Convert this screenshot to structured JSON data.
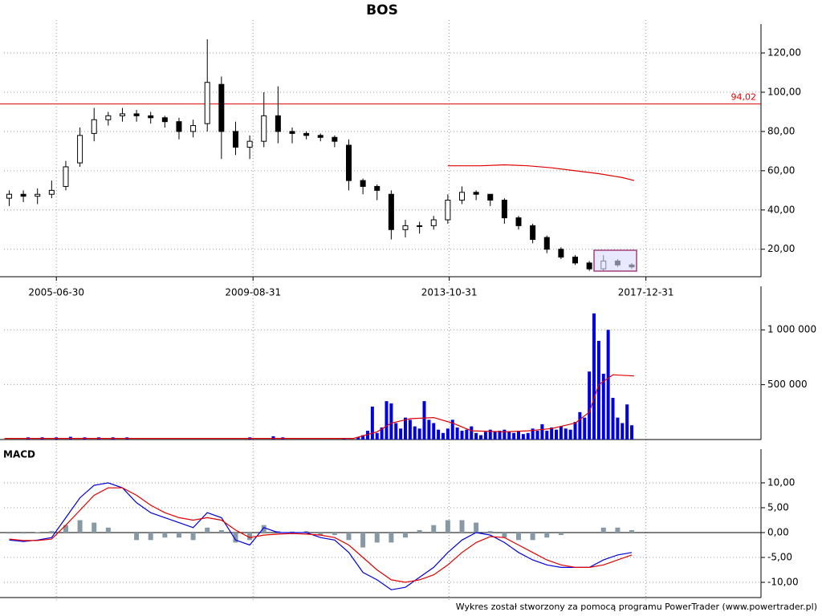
{
  "footer": "Wykres został stworzony za pomocą programu PowerTrader (www.powertrader.pl)",
  "chart_data": [
    {
      "type": "candlestick",
      "title": "BOS",
      "xlim": [
        2004.39,
        2020.44
      ],
      "xticks": [
        {
          "value": 2005.5,
          "label": "2005-06-30"
        },
        {
          "value": 2009.67,
          "label": "2009-08-31"
        },
        {
          "value": 2013.83,
          "label": "2013-10-31"
        },
        {
          "value": 2018.0,
          "label": "2017-12-31"
        }
      ],
      "ylim": [
        6,
        128.6
      ],
      "yticks": [
        {
          "value": 20,
          "label": "20,00"
        },
        {
          "value": 40,
          "label": "40,00"
        },
        {
          "value": 60,
          "label": "60,00"
        },
        {
          "value": 80,
          "label": "80,00"
        },
        {
          "value": 100,
          "label": "100,00"
        },
        {
          "value": 120,
          "label": "120,00"
        }
      ],
      "grid": true,
      "up_color": "#ffffff",
      "down_color": "#000000",
      "x": [
        2004.5,
        2004.8,
        2005.1,
        2005.4,
        2005.7,
        2006.0,
        2006.3,
        2006.6,
        2006.9,
        2007.2,
        2007.5,
        2007.8,
        2008.1,
        2008.4,
        2008.7,
        2009.0,
        2009.3,
        2009.6,
        2009.9,
        2010.2,
        2010.5,
        2010.8,
        2011.1,
        2011.4,
        2011.7,
        2012.0,
        2012.3,
        2012.6,
        2012.9,
        2013.2,
        2013.5,
        2013.8,
        2014.1,
        2014.4,
        2014.7,
        2015.0,
        2015.3,
        2015.6,
        2015.9,
        2016.2,
        2016.5,
        2016.8,
        2017.1,
        2017.4,
        2017.7
      ],
      "open": [
        46,
        48,
        47,
        48,
        52,
        64,
        79,
        86,
        88,
        89,
        88,
        87,
        85,
        80,
        84,
        104,
        80,
        72,
        75,
        88,
        80,
        79,
        78,
        77,
        73,
        55,
        52,
        48,
        30,
        32,
        32,
        35,
        45,
        49,
        48,
        45,
        36,
        32,
        26,
        20,
        16,
        13,
        10,
        14,
        12
      ],
      "high": [
        50,
        50,
        51,
        55,
        65,
        82,
        92,
        90,
        92,
        91,
        90,
        88,
        87,
        86,
        127,
        108,
        85,
        78,
        100,
        103,
        82,
        80,
        79,
        78,
        76,
        56,
        53,
        50,
        35,
        34,
        37,
        48,
        52,
        50,
        48,
        46,
        37,
        33,
        27,
        21,
        17,
        14,
        17,
        15,
        13
      ],
      "low": [
        42,
        44,
        43,
        46,
        50,
        62,
        75,
        83,
        85,
        85,
        84,
        82,
        76,
        77,
        80,
        66,
        68,
        66,
        72,
        74,
        74,
        76,
        75,
        72,
        50,
        48,
        45,
        25,
        26,
        28,
        30,
        33,
        43,
        45,
        42,
        33,
        30,
        23,
        18,
        15,
        12,
        9,
        9,
        11,
        10
      ],
      "close": [
        48,
        47,
        48,
        50,
        62,
        78,
        86,
        88,
        89,
        88,
        87,
        85,
        80,
        83,
        105,
        80,
        72,
        75,
        88,
        80,
        79,
        78,
        77,
        75,
        55,
        52,
        50,
        30,
        32,
        32,
        35,
        45,
        49,
        48,
        45,
        36,
        32,
        25,
        20,
        16,
        13,
        10,
        14,
        12,
        11
      ],
      "series": [
        {
          "color": "#e00000",
          "x": [
            2013.8,
            2014.5,
            2015.0,
            2015.5,
            2016.0,
            2016.5,
            2017.0,
            2017.5,
            2017.75
          ],
          "values": [
            62.5,
            62.5,
            63,
            62.5,
            61.5,
            60,
            58.5,
            56.5,
            55
          ]
        }
      ],
      "hlines": [
        {
          "value": 94.02,
          "label": "94,02",
          "color": "#e00000"
        }
      ]
    },
    {
      "type": "bar",
      "color": "#0000e0",
      "ylim": [
        0,
        1287000
      ],
      "yticks": [
        {
          "value": 500000,
          "label": "500 000"
        },
        {
          "value": 1000000,
          "label": "1 000 000"
        }
      ],
      "grid": true,
      "x": [
        2004.9,
        2005.2,
        2005.5,
        2005.8,
        2006.1,
        2006.4,
        2006.7,
        2007.0,
        2009.6,
        2010.1,
        2010.3,
        2011.6,
        2011.9,
        2012.0,
        2012.1,
        2012.2,
        2012.3,
        2012.4,
        2012.5,
        2012.6,
        2012.7,
        2012.8,
        2012.9,
        2013.0,
        2013.1,
        2013.2,
        2013.3,
        2013.4,
        2013.5,
        2013.6,
        2013.7,
        2013.8,
        2013.9,
        2014.0,
        2014.1,
        2014.2,
        2014.3,
        2014.4,
        2014.5,
        2014.6,
        2014.7,
        2014.8,
        2014.9,
        2015.0,
        2015.1,
        2015.2,
        2015.3,
        2015.4,
        2015.5,
        2015.6,
        2015.7,
        2015.8,
        2015.9,
        2016.0,
        2016.1,
        2016.2,
        2016.3,
        2016.4,
        2016.5,
        2016.6,
        2016.7,
        2016.8,
        2016.9,
        2017.0,
        2017.1,
        2017.2,
        2017.3,
        2017.4,
        2017.5,
        2017.6,
        2017.7
      ],
      "values": [
        20000,
        20000,
        20000,
        25000,
        20000,
        20000,
        20000,
        20000,
        20000,
        30000,
        20000,
        15000,
        20000,
        40000,
        80000,
        300000,
        60000,
        110000,
        350000,
        330000,
        150000,
        100000,
        200000,
        180000,
        120000,
        100000,
        350000,
        180000,
        150000,
        90000,
        60000,
        100000,
        180000,
        110000,
        80000,
        90000,
        120000,
        60000,
        40000,
        70000,
        90000,
        70000,
        80000,
        90000,
        70000,
        60000,
        80000,
        50000,
        60000,
        100000,
        80000,
        140000,
        80000,
        110000,
        90000,
        120000,
        100000,
        90000,
        160000,
        250000,
        200000,
        620000,
        1150000,
        900000,
        600000,
        1000000,
        380000,
        200000,
        150000,
        320000,
        130000
      ],
      "series": [
        {
          "color": "#e00000",
          "x": [
            2004.4,
            2011.8,
            2012.3,
            2012.6,
            2013.0,
            2013.5,
            2013.9,
            2014.3,
            2015.0,
            2015.5,
            2016.0,
            2016.5,
            2016.8,
            2017.0,
            2017.3,
            2017.75
          ],
          "values": [
            10000,
            10000,
            70000,
            150000,
            190000,
            200000,
            150000,
            80000,
            70000,
            80000,
            100000,
            150000,
            250000,
            500000,
            590000,
            580000
          ]
        }
      ]
    },
    {
      "type": "macd",
      "title": "MACD",
      "ylim": [
        -13.06,
        14.35
      ],
      "yticks": [
        {
          "value": -10,
          "label": "-10,00"
        },
        {
          "value": -5,
          "label": "-5,00"
        },
        {
          "value": 0,
          "label": "0,00"
        },
        {
          "value": 5,
          "label": "5,00"
        },
        {
          "value": 10,
          "label": "10,00"
        }
      ],
      "grid": true,
      "histogram_color": "#8899a6",
      "x": [
        2004.5,
        2004.8,
        2005.1,
        2005.4,
        2005.7,
        2006.0,
        2006.3,
        2006.6,
        2006.9,
        2007.2,
        2007.5,
        2007.8,
        2008.1,
        2008.4,
        2008.7,
        2009.0,
        2009.3,
        2009.6,
        2009.9,
        2010.2,
        2010.5,
        2010.8,
        2011.1,
        2011.4,
        2011.7,
        2012.0,
        2012.3,
        2012.6,
        2012.9,
        2013.2,
        2013.5,
        2013.8,
        2014.1,
        2014.4,
        2014.7,
        2015.0,
        2015.3,
        2015.6,
        2015.9,
        2016.2,
        2016.5,
        2016.8,
        2017.1,
        2017.4,
        2017.7
      ],
      "histogram": [
        -0.2,
        -0.2,
        0.1,
        0.3,
        1.5,
        2.5,
        2,
        1,
        0,
        -1.5,
        -1.5,
        -1,
        -1,
        -1.5,
        1,
        0.5,
        -2,
        -1.5,
        1.5,
        0.3,
        0.2,
        0.3,
        -0.5,
        -0.5,
        -1.5,
        -3,
        -2,
        -2,
        -1,
        0.5,
        1.5,
        2.5,
        2.5,
        2,
        0.3,
        -1,
        -1.5,
        -1.5,
        -1,
        -0.5,
        0,
        0,
        1,
        1,
        0.5
      ],
      "series": [
        {
          "color": "#0000e0",
          "values": [
            -1.5,
            -1.8,
            -1.5,
            -1,
            3,
            7,
            9.5,
            10,
            9,
            6,
            4,
            3,
            2,
            1,
            4,
            3,
            -1.5,
            -2.5,
            1,
            0,
            0,
            0,
            -1,
            -1.5,
            -4,
            -8,
            -9.5,
            -11.5,
            -11,
            -9,
            -7,
            -4,
            -1.5,
            0,
            -0.5,
            -2,
            -4,
            -5.5,
            -6.5,
            -7,
            -7,
            -7,
            -5.5,
            -4.5,
            -4
          ]
        },
        {
          "color": "#e00000",
          "values": [
            -1.3,
            -1.6,
            -1.6,
            -1.3,
            1.5,
            4.5,
            7.5,
            9,
            9,
            7.5,
            5.5,
            4,
            3,
            2.5,
            3,
            2.5,
            0.5,
            -1,
            -0.5,
            -0.3,
            -0.2,
            -0.3,
            -0.5,
            -1,
            -2.5,
            -5,
            -7.5,
            -9.5,
            -10,
            -9.5,
            -8.5,
            -6.5,
            -4,
            -2,
            -0.8,
            -1,
            -2.5,
            -4,
            -5.5,
            -6.5,
            -7,
            -7,
            -6.5,
            -5.5,
            -4.5
          ]
        }
      ]
    }
  ]
}
